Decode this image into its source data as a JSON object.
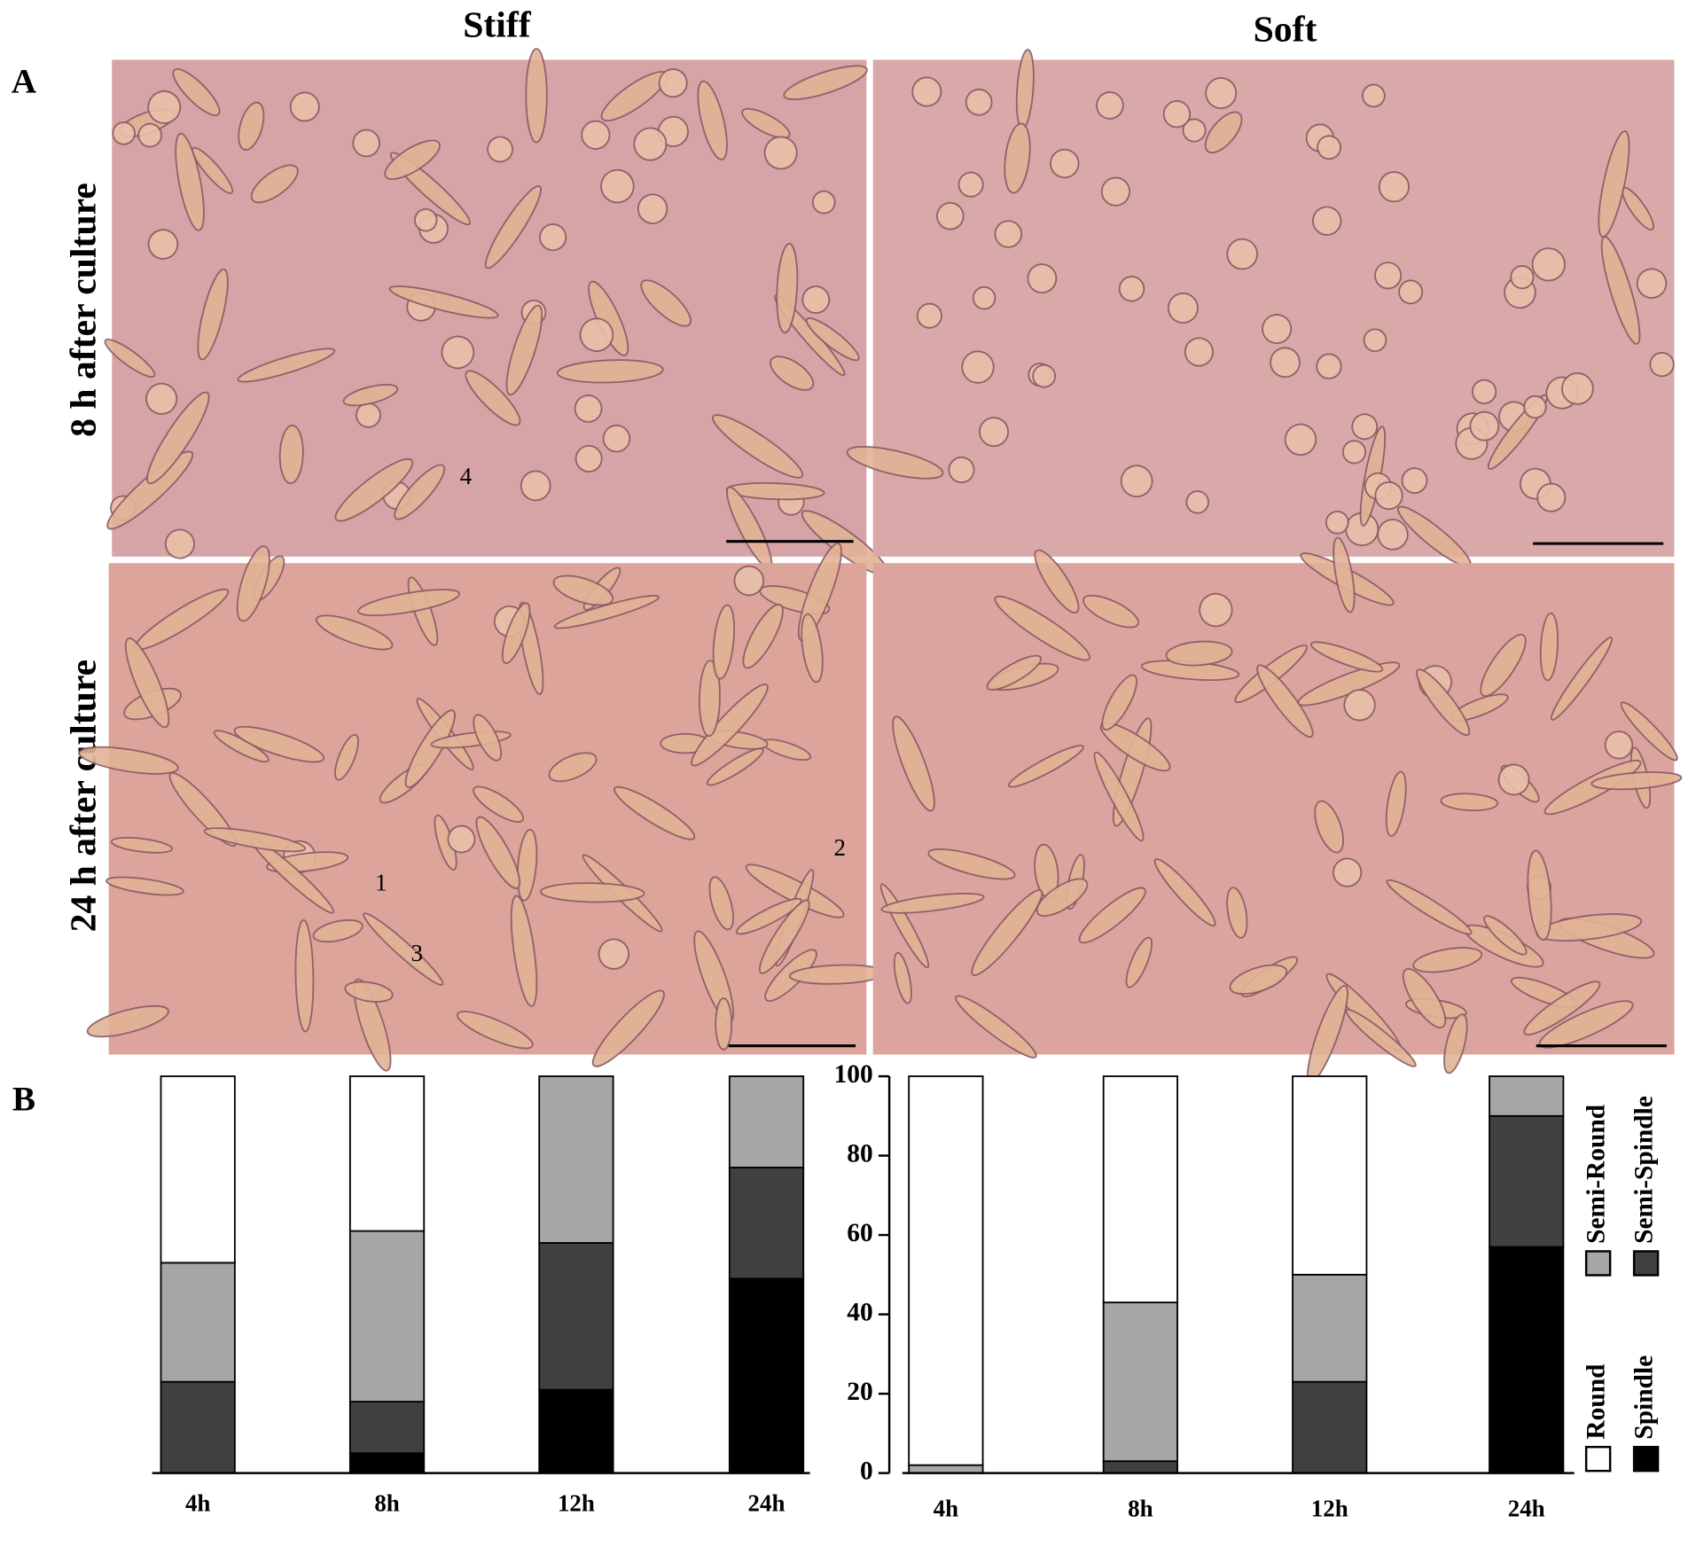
{
  "figure": {
    "panels": [
      "A",
      "B"
    ],
    "columns": [
      "Stiff",
      "Soft"
    ],
    "rows": [
      "8 h after culture",
      "24 h after culture"
    ],
    "image_annotations": [
      "4",
      "1",
      "2",
      "3"
    ]
  },
  "chart_data": [
    {
      "type": "stacked-bar",
      "categories": [
        "4h",
        "8h",
        "12h",
        "24h"
      ],
      "ylim": [
        0,
        100
      ],
      "series": [
        {
          "name": "Spindle",
          "color": "#000000",
          "values": [
            0,
            5,
            21,
            49
          ]
        },
        {
          "name": "Semi-Spindle",
          "color": "#404040",
          "values": [
            23,
            13,
            37,
            28
          ]
        },
        {
          "name": "Semi-Round",
          "color": "#a6a6a6",
          "values": [
            30,
            43,
            42,
            23
          ]
        },
        {
          "name": "Round",
          "color": "#ffffff",
          "values": [
            47,
            39,
            0,
            0
          ]
        }
      ]
    },
    {
      "type": "stacked-bar",
      "categories": [
        "4h",
        "8h",
        "12h",
        "24h"
      ],
      "ylim": [
        0,
        100
      ],
      "yticks": [
        0,
        20,
        40,
        60,
        80,
        100
      ],
      "legend": "right",
      "series": [
        {
          "name": "Spindle",
          "color": "#000000",
          "values": [
            0,
            0,
            0,
            57
          ]
        },
        {
          "name": "Semi-Spindle",
          "color": "#404040",
          "values": [
            0,
            3,
            23,
            33
          ]
        },
        {
          "name": "Semi-Round",
          "color": "#a6a6a6",
          "values": [
            2,
            40,
            27,
            10
          ]
        },
        {
          "name": "Round",
          "color": "#ffffff",
          "values": [
            98,
            57,
            50,
            0
          ]
        }
      ]
    }
  ]
}
